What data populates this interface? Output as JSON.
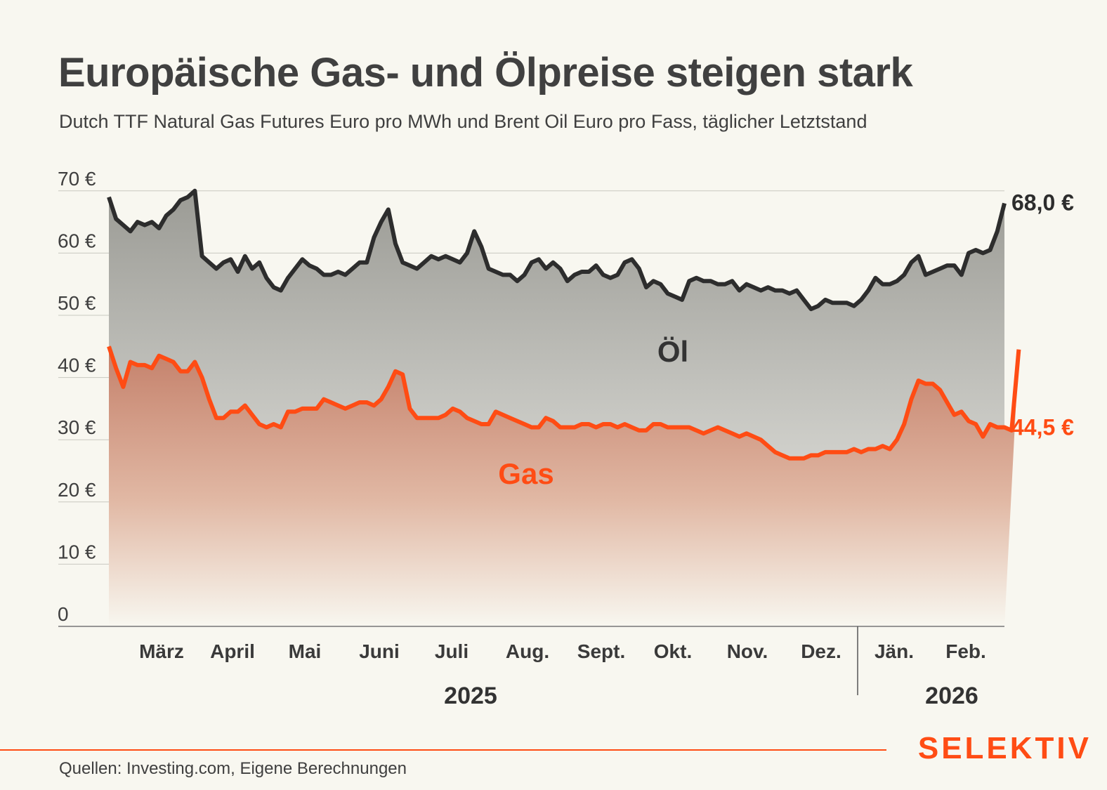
{
  "title": "Europäische Gas- und Ölpreise steigen stark",
  "subtitle": "Dutch TTF Natural Gas Futures Euro pro MWh und Brent Oil Euro pro Fass, täglicher Letztstand",
  "source": "Quellen: Investing.com, Eigene Berechnungen",
  "brand": "SELEKTIV",
  "colors": {
    "oil": "#2d2d2d",
    "gas": "#ff4c14",
    "background": "#f8f7f0"
  },
  "chart_data": {
    "type": "area",
    "y_ticks": [
      "0",
      "10 €",
      "20 €",
      "30 €",
      "40 €",
      "50 €",
      "60 €",
      "70 €"
    ],
    "ylim": [
      0,
      70
    ],
    "months": [
      "März",
      "April",
      "Mai",
      "Juni",
      "Juli",
      "Aug.",
      "Sept.",
      "Okt.",
      "Nov.",
      "Dez.",
      "Jän.",
      "Feb."
    ],
    "years": [
      "2025",
      "2026"
    ],
    "grid": true,
    "series": [
      {
        "name": "Öl",
        "end_label": "68,0 €",
        "values": [
          69.0,
          65.5,
          64.5,
          63.5,
          65.0,
          64.5,
          65.0,
          64.0,
          66.0,
          67.0,
          68.5,
          69.0,
          70.0,
          59.5,
          58.5,
          57.5,
          58.5,
          59.0,
          57.0,
          59.5,
          57.5,
          58.5,
          56.0,
          54.5,
          54.0,
          56.0,
          57.5,
          59.0,
          58.0,
          57.5,
          56.5,
          56.5,
          57.0,
          56.5,
          57.5,
          58.5,
          58.5,
          62.5,
          65.0,
          67.0,
          61.5,
          58.5,
          58.0,
          57.5,
          58.5,
          59.5,
          59.0,
          59.5,
          59.0,
          58.5,
          60.0,
          63.5,
          61.0,
          57.5,
          57.0,
          56.5,
          56.5,
          55.5,
          56.5,
          58.5,
          59.0,
          57.5,
          58.5,
          57.5,
          55.5,
          56.5,
          57.0,
          57.0,
          58.0,
          56.5,
          56.0,
          56.5,
          58.5,
          59.0,
          57.5,
          54.5,
          55.5,
          55.0,
          53.5,
          53.0,
          52.5,
          55.5,
          56.0,
          55.5,
          55.5,
          55.0,
          55.0,
          55.5,
          54.0,
          55.0,
          54.5,
          54.0,
          54.5,
          54.0,
          54.0,
          53.5,
          54.0,
          52.5,
          51.0,
          51.5,
          52.5,
          52.0,
          52.0,
          52.0,
          51.5,
          52.5,
          54.0,
          56.0,
          55.0,
          55.0,
          55.5,
          56.5,
          58.5,
          59.5,
          56.5,
          57.0,
          57.5,
          58.0,
          58.0,
          56.5,
          60.0,
          60.5,
          60.0,
          60.5,
          63.5,
          68.0
        ]
      },
      {
        "name": "Gas",
        "end_label": "44,5 €",
        "values": [
          45.0,
          41.5,
          38.5,
          42.5,
          42.0,
          42.0,
          41.5,
          43.5,
          43.0,
          42.5,
          41.0,
          41.0,
          42.5,
          40.0,
          36.5,
          33.5,
          33.5,
          34.5,
          34.5,
          35.5,
          34.0,
          32.5,
          32.0,
          32.5,
          32.0,
          34.5,
          34.5,
          35.0,
          35.0,
          35.0,
          36.5,
          36.0,
          35.5,
          35.0,
          35.5,
          36.0,
          36.0,
          35.5,
          36.5,
          38.5,
          41.0,
          40.5,
          35.0,
          33.5,
          33.5,
          33.5,
          33.5,
          34.0,
          35.0,
          34.5,
          33.5,
          33.0,
          32.5,
          32.5,
          34.5,
          34.0,
          33.5,
          33.0,
          32.5,
          32.0,
          32.0,
          33.5,
          33.0,
          32.0,
          32.0,
          32.0,
          32.5,
          32.5,
          32.0,
          32.5,
          32.5,
          32.0,
          32.5,
          32.0,
          31.5,
          31.5,
          32.5,
          32.5,
          32.0,
          32.0,
          32.0,
          32.0,
          31.5,
          31.0,
          31.5,
          32.0,
          31.5,
          31.0,
          30.5,
          31.0,
          30.5,
          30.0,
          29.0,
          28.0,
          27.5,
          27.0,
          27.0,
          27.0,
          27.5,
          27.5,
          28.0,
          28.0,
          28.0,
          28.0,
          28.5,
          28.0,
          28.5,
          28.5,
          29.0,
          28.5,
          30.0,
          32.5,
          36.5,
          39.5,
          39.0,
          39.0,
          38.0,
          36.0,
          34.0,
          34.5,
          33.0,
          32.5,
          30.5,
          32.5,
          32.0,
          32.0,
          31.5,
          44.5
        ]
      }
    ]
  }
}
